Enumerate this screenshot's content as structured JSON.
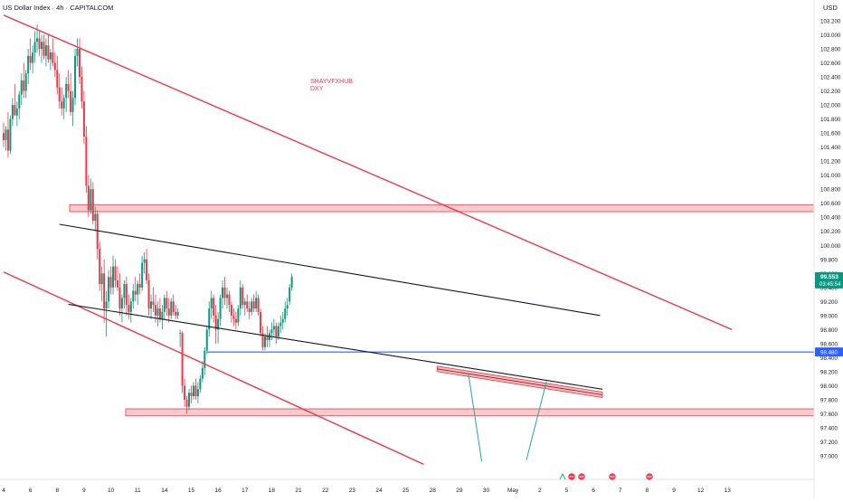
{
  "header": {
    "title": "US Dollar Index · 4h · CAPITALCOM",
    "currency": "USD"
  },
  "watermark": {
    "line1": "SHAYVFXHUB",
    "line2": "DXY"
  },
  "price_badge": {
    "price": "99.553",
    "countdown": "03:45:54",
    "color": "#089981"
  },
  "level_badge": {
    "price": "98.480",
    "color": "#2962ff"
  },
  "colors": {
    "up": "#089981",
    "down": "#f23645",
    "channel": "#f23645",
    "trend": "#131722",
    "zone_fill": "#f7a9ae",
    "hline": "#2962ff",
    "arrow": "#26a69a"
  },
  "chart_data": {
    "type": "candlestick",
    "title": "US Dollar Index · 4h · CAPITALCOM",
    "y_axis": {
      "range": [
        96.88,
        103.28
      ],
      "ticks": [
        "103.200",
        "103.000",
        "102.800",
        "102.600",
        "102.400",
        "102.200",
        "102.000",
        "101.800",
        "101.600",
        "101.400",
        "101.200",
        "101.000",
        "100.800",
        "100.600",
        "100.400",
        "100.200",
        "100.000",
        "99.800",
        "99.600",
        "99.400",
        "99.200",
        "99.000",
        "98.800",
        "98.600",
        "98.400",
        "98.200",
        "98.000",
        "97.800",
        "97.600",
        "97.400",
        "97.200",
        "97.000"
      ]
    },
    "x_axis": {
      "ticks": [
        {
          "label": "4",
          "bar": 0
        },
        {
          "label": "6",
          "bar": 12
        },
        {
          "label": "8",
          "bar": 24
        },
        {
          "label": "9",
          "bar": 36
        },
        {
          "label": "10",
          "bar": 48
        },
        {
          "label": "11",
          "bar": 60
        },
        {
          "label": "14",
          "bar": 72
        },
        {
          "label": "15",
          "bar": 84
        },
        {
          "label": "16",
          "bar": 96
        },
        {
          "label": "17",
          "bar": 108
        },
        {
          "label": "18",
          "bar": 120
        },
        {
          "label": "21",
          "bar": 132
        },
        {
          "label": "22",
          "bar": 144
        },
        {
          "label": "23",
          "bar": 156
        },
        {
          "label": "24",
          "bar": 168
        },
        {
          "label": "25",
          "bar": 180
        },
        {
          "label": "28",
          "bar": 192
        },
        {
          "label": "29",
          "bar": 204
        },
        {
          "label": "30",
          "bar": 216
        },
        {
          "label": "May",
          "bar": 228
        },
        {
          "label": "2",
          "bar": 240
        },
        {
          "label": "5",
          "bar": 252
        },
        {
          "label": "6",
          "bar": 264
        },
        {
          "label": "7",
          "bar": 276
        },
        {
          "label": "8",
          "bar": 288
        },
        {
          "label": "9",
          "bar": 300
        },
        {
          "label": "12",
          "bar": 312
        },
        {
          "label": "13",
          "bar": 324
        }
      ]
    },
    "candles_ohlc": [
      [
        101.6,
        101.75,
        101.4,
        101.5
      ],
      [
        101.5,
        101.7,
        101.35,
        101.65
      ],
      [
        101.65,
        101.9,
        101.25,
        101.35
      ],
      [
        101.35,
        101.85,
        101.3,
        101.8
      ],
      [
        101.8,
        102.1,
        101.7,
        102.0
      ],
      [
        102.0,
        102.3,
        101.9,
        101.85
      ],
      [
        101.85,
        102.05,
        101.7,
        101.95
      ],
      [
        101.95,
        102.2,
        101.8,
        102.15
      ],
      [
        102.15,
        102.45,
        102.0,
        102.35
      ],
      [
        102.35,
        102.6,
        102.1,
        102.2
      ],
      [
        102.2,
        102.5,
        102.1,
        102.45
      ],
      [
        102.45,
        102.8,
        102.3,
        102.7
      ],
      [
        102.7,
        102.95,
        102.5,
        102.6
      ],
      [
        102.6,
        102.85,
        102.45,
        102.75
      ],
      [
        102.75,
        103.05,
        102.6,
        102.9
      ],
      [
        102.9,
        103.15,
        102.75,
        102.95
      ],
      [
        102.95,
        103.05,
        102.7,
        102.8
      ],
      [
        102.8,
        103.0,
        102.6,
        102.9
      ],
      [
        102.9,
        103.0,
        102.65,
        102.7
      ],
      [
        102.7,
        102.95,
        102.55,
        102.85
      ],
      [
        102.85,
        103.0,
        102.6,
        102.65
      ],
      [
        102.65,
        102.8,
        102.5,
        102.75
      ],
      [
        102.75,
        102.95,
        102.55,
        102.6
      ],
      [
        102.6,
        102.75,
        102.4,
        102.5
      ],
      [
        102.5,
        102.7,
        102.15,
        102.25
      ],
      [
        102.25,
        102.45,
        101.95,
        102.05
      ],
      [
        102.05,
        102.25,
        101.85,
        101.95
      ],
      [
        101.95,
        102.15,
        101.8,
        102.1
      ],
      [
        102.1,
        102.4,
        101.9,
        102.3
      ],
      [
        102.3,
        102.5,
        102.1,
        102.2
      ],
      [
        102.2,
        102.45,
        101.85,
        101.9
      ],
      [
        101.9,
        102.2,
        101.7,
        102.1
      ],
      [
        102.1,
        102.8,
        102.0,
        102.7
      ],
      [
        102.7,
        102.95,
        102.55,
        102.8
      ],
      [
        102.8,
        102.95,
        102.3,
        102.4
      ],
      [
        102.4,
        102.55,
        101.95,
        102.05
      ],
      [
        102.05,
        102.2,
        101.45,
        101.55
      ],
      [
        101.55,
        101.7,
        100.75,
        100.85
      ],
      [
        100.85,
        101.0,
        100.4,
        100.5
      ],
      [
        100.5,
        100.95,
        100.45,
        100.8
      ],
      [
        100.8,
        100.9,
        100.3,
        100.35
      ],
      [
        100.35,
        100.55,
        100.2,
        100.45
      ],
      [
        100.45,
        100.5,
        99.8,
        99.95
      ],
      [
        99.95,
        100.05,
        99.35,
        99.45
      ],
      [
        99.45,
        99.7,
        99.2,
        99.6
      ],
      [
        99.6,
        99.8,
        98.9,
        99.1
      ],
      [
        99.1,
        99.35,
        98.7,
        99.2
      ],
      [
        99.2,
        99.65,
        99.1,
        99.55
      ],
      [
        99.55,
        99.7,
        99.3,
        99.4
      ],
      [
        99.4,
        99.85,
        99.3,
        99.7
      ],
      [
        99.7,
        99.8,
        99.4,
        99.5
      ],
      [
        99.5,
        99.7,
        99.35,
        99.4
      ],
      [
        99.4,
        99.6,
        99.0,
        99.1
      ],
      [
        99.1,
        99.3,
        98.9,
        99.25
      ],
      [
        99.25,
        99.5,
        99.1,
        99.45
      ],
      [
        99.45,
        99.55,
        99.0,
        99.15
      ],
      [
        99.15,
        99.3,
        98.95,
        99.05
      ],
      [
        99.05,
        99.25,
        98.9,
        99.2
      ],
      [
        99.2,
        99.45,
        99.1,
        99.35
      ],
      [
        99.35,
        99.55,
        99.2,
        99.3
      ],
      [
        99.3,
        99.5,
        99.15,
        99.45
      ],
      [
        99.45,
        99.6,
        99.3,
        99.4
      ],
      [
        99.4,
        99.85,
        99.35,
        99.75
      ],
      [
        99.75,
        99.9,
        99.6,
        99.8
      ],
      [
        99.8,
        99.95,
        99.45,
        99.5
      ],
      [
        99.5,
        99.6,
        99.0,
        99.1
      ],
      [
        99.1,
        99.3,
        98.95,
        99.2
      ],
      [
        99.2,
        99.4,
        99.05,
        99.15
      ],
      [
        99.15,
        99.3,
        98.9,
        99.0
      ],
      [
        99.0,
        99.2,
        98.85,
        99.1
      ],
      [
        99.1,
        99.25,
        98.9,
        98.95
      ],
      [
        98.95,
        99.15,
        98.8,
        99.05
      ],
      [
        99.05,
        99.3,
        98.95,
        99.25
      ],
      [
        99.25,
        99.35,
        99.0,
        99.1
      ],
      [
        99.1,
        99.25,
        98.9,
        99.0
      ],
      [
        99.0,
        99.25,
        98.95,
        99.2
      ],
      [
        99.2,
        99.3,
        99.0,
        99.05
      ],
      [
        99.05,
        99.15,
        98.95,
        99.0
      ],
      [
        99.0,
        99.1,
        98.95,
        99.05
      ],
      [
        98.75,
        98.8,
        98.55,
        98.75
      ],
      [
        98.75,
        98.78,
        97.9,
        98.0
      ],
      [
        98.0,
        98.1,
        97.7,
        97.8
      ],
      [
        97.8,
        97.85,
        97.6,
        97.7
      ],
      [
        97.7,
        97.95,
        97.65,
        97.9
      ],
      [
        97.9,
        98.0,
        97.75,
        97.85
      ],
      [
        97.85,
        98.05,
        97.8,
        98.0
      ],
      [
        98.0,
        98.1,
        97.8,
        97.85
      ],
      [
        97.85,
        98.05,
        97.75,
        97.95
      ],
      [
        97.95,
        98.15,
        97.9,
        98.1
      ],
      [
        98.1,
        98.35,
        98.05,
        98.25
      ],
      [
        98.25,
        98.55,
        98.15,
        98.5
      ],
      [
        98.5,
        98.85,
        98.45,
        98.8
      ],
      [
        98.8,
        99.2,
        98.7,
        99.1
      ],
      [
        99.1,
        99.35,
        98.95,
        99.25
      ],
      [
        99.25,
        99.3,
        98.9,
        99.0
      ],
      [
        99.0,
        99.15,
        98.6,
        98.8
      ],
      [
        98.8,
        99.05,
        98.6,
        98.95
      ],
      [
        98.95,
        99.3,
        98.85,
        99.25
      ],
      [
        99.25,
        99.5,
        99.1,
        99.4
      ],
      [
        99.4,
        99.55,
        99.15,
        99.25
      ],
      [
        99.25,
        99.4,
        99.1,
        99.3
      ],
      [
        99.3,
        99.35,
        99.05,
        99.15
      ],
      [
        99.15,
        99.2,
        98.9,
        99.0
      ],
      [
        99.0,
        99.1,
        98.85,
        98.95
      ],
      [
        98.95,
        99.05,
        98.8,
        98.9
      ],
      [
        98.9,
        99.15,
        98.85,
        99.1
      ],
      [
        99.1,
        99.5,
        99.0,
        99.4
      ],
      [
        99.4,
        99.45,
        99.1,
        99.15
      ],
      [
        99.15,
        99.25,
        99.0,
        99.2
      ],
      [
        99.2,
        99.3,
        99.05,
        99.1
      ],
      [
        99.1,
        99.2,
        98.95,
        99.05
      ],
      [
        99.05,
        99.25,
        99.0,
        99.2
      ],
      [
        99.2,
        99.3,
        99.05,
        99.1
      ],
      [
        99.1,
        99.35,
        99.05,
        99.25
      ],
      [
        99.25,
        99.3,
        99.0,
        99.05
      ],
      [
        99.05,
        99.1,
        98.7,
        98.75
      ],
      [
        98.75,
        98.85,
        98.5,
        98.55
      ],
      [
        98.55,
        98.75,
        98.5,
        98.7
      ],
      [
        98.7,
        98.85,
        98.55,
        98.65
      ],
      [
        98.65,
        98.8,
        98.55,
        98.75
      ],
      [
        98.75,
        98.9,
        98.65,
        98.8
      ],
      [
        98.8,
        98.95,
        98.7,
        98.85
      ],
      [
        98.85,
        98.9,
        98.6,
        98.7
      ],
      [
        98.7,
        98.9,
        98.65,
        98.85
      ],
      [
        98.85,
        99.0,
        98.75,
        98.9
      ],
      [
        98.9,
        99.05,
        98.8,
        98.95
      ],
      [
        98.95,
        99.2,
        98.9,
        99.1
      ],
      [
        99.1,
        99.25,
        99.0,
        99.15
      ],
      [
        99.2,
        99.45,
        99.15,
        99.4
      ],
      [
        99.4,
        99.6,
        99.35,
        99.55
      ]
    ],
    "annotations": {
      "channel_upper": [
        [
          0,
          103.28
        ],
        [
          326,
          98.8
        ]
      ],
      "channel_lower": [
        [
          0,
          99.62
        ],
        [
          188,
          96.88
        ]
      ],
      "trend_upper": [
        [
          25,
          100.3
        ],
        [
          267,
          99.0
        ]
      ],
      "trend_lower": [
        [
          29,
          99.16
        ],
        [
          268,
          97.95
        ]
      ],
      "resistance_zone": [
        100.48,
        100.58
      ],
      "support_zone": [
        97.57,
        97.67
      ],
      "horizontal_level": 98.48,
      "forecast_zone": [
        [
          194,
          98.24
        ],
        [
          268,
          97.87
        ]
      ],
      "arrows": [
        [
          [
            208,
            98.18
          ],
          [
            214,
            96.92
          ]
        ],
        [
          [
            234,
            96.94
          ],
          [
            243,
            98.06
          ]
        ]
      ]
    }
  }
}
